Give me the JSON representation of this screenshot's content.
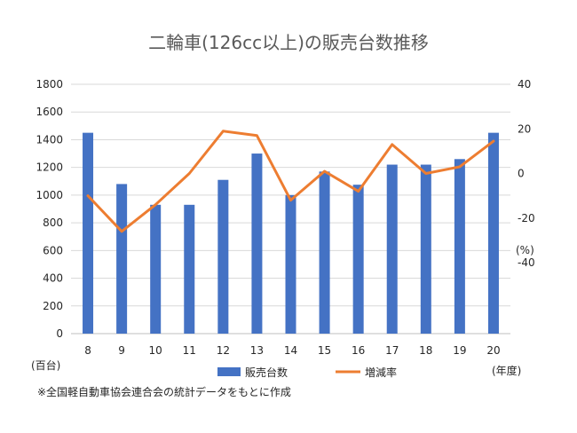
{
  "chart_data": {
    "type": "bar+line",
    "title": "二輪車(126cc以上)の販売台数推移",
    "categories": [
      "8",
      "9",
      "10",
      "11",
      "12",
      "13",
      "14",
      "15",
      "16",
      "17",
      "18",
      "19",
      "20"
    ],
    "series": [
      {
        "name": "販売台数",
        "type": "bar",
        "axis": "left",
        "color": "#4472C4",
        "values": [
          1450,
          1080,
          930,
          930,
          1110,
          1300,
          1000,
          1170,
          1075,
          1220,
          1220,
          1260,
          1450
        ]
      },
      {
        "name": "増減率",
        "type": "line",
        "axis": "right",
        "color": "#ED7D31",
        "values": [
          -10,
          -26,
          -14,
          0,
          19,
          17,
          -12,
          1,
          -8,
          13,
          0,
          3,
          14.5
        ]
      }
    ],
    "left_axis": {
      "unit": "(百台)",
      "range": [
        0,
        1800
      ],
      "ticks": [
        "0",
        "200",
        "400",
        "600",
        "800",
        "1000",
        "1200",
        "1400",
        "1600",
        "1800"
      ]
    },
    "right_axis": {
      "unit": "(%)",
      "range": [
        -40,
        40
      ],
      "ticks": [
        "-40",
        "-20",
        "0",
        "20",
        "40"
      ]
    },
    "x_unit": "(年度)",
    "grid": "horizontal",
    "legend_position": "bottom",
    "footnote": "※全国軽自動車協会連合会の統計データをもとに作成"
  }
}
